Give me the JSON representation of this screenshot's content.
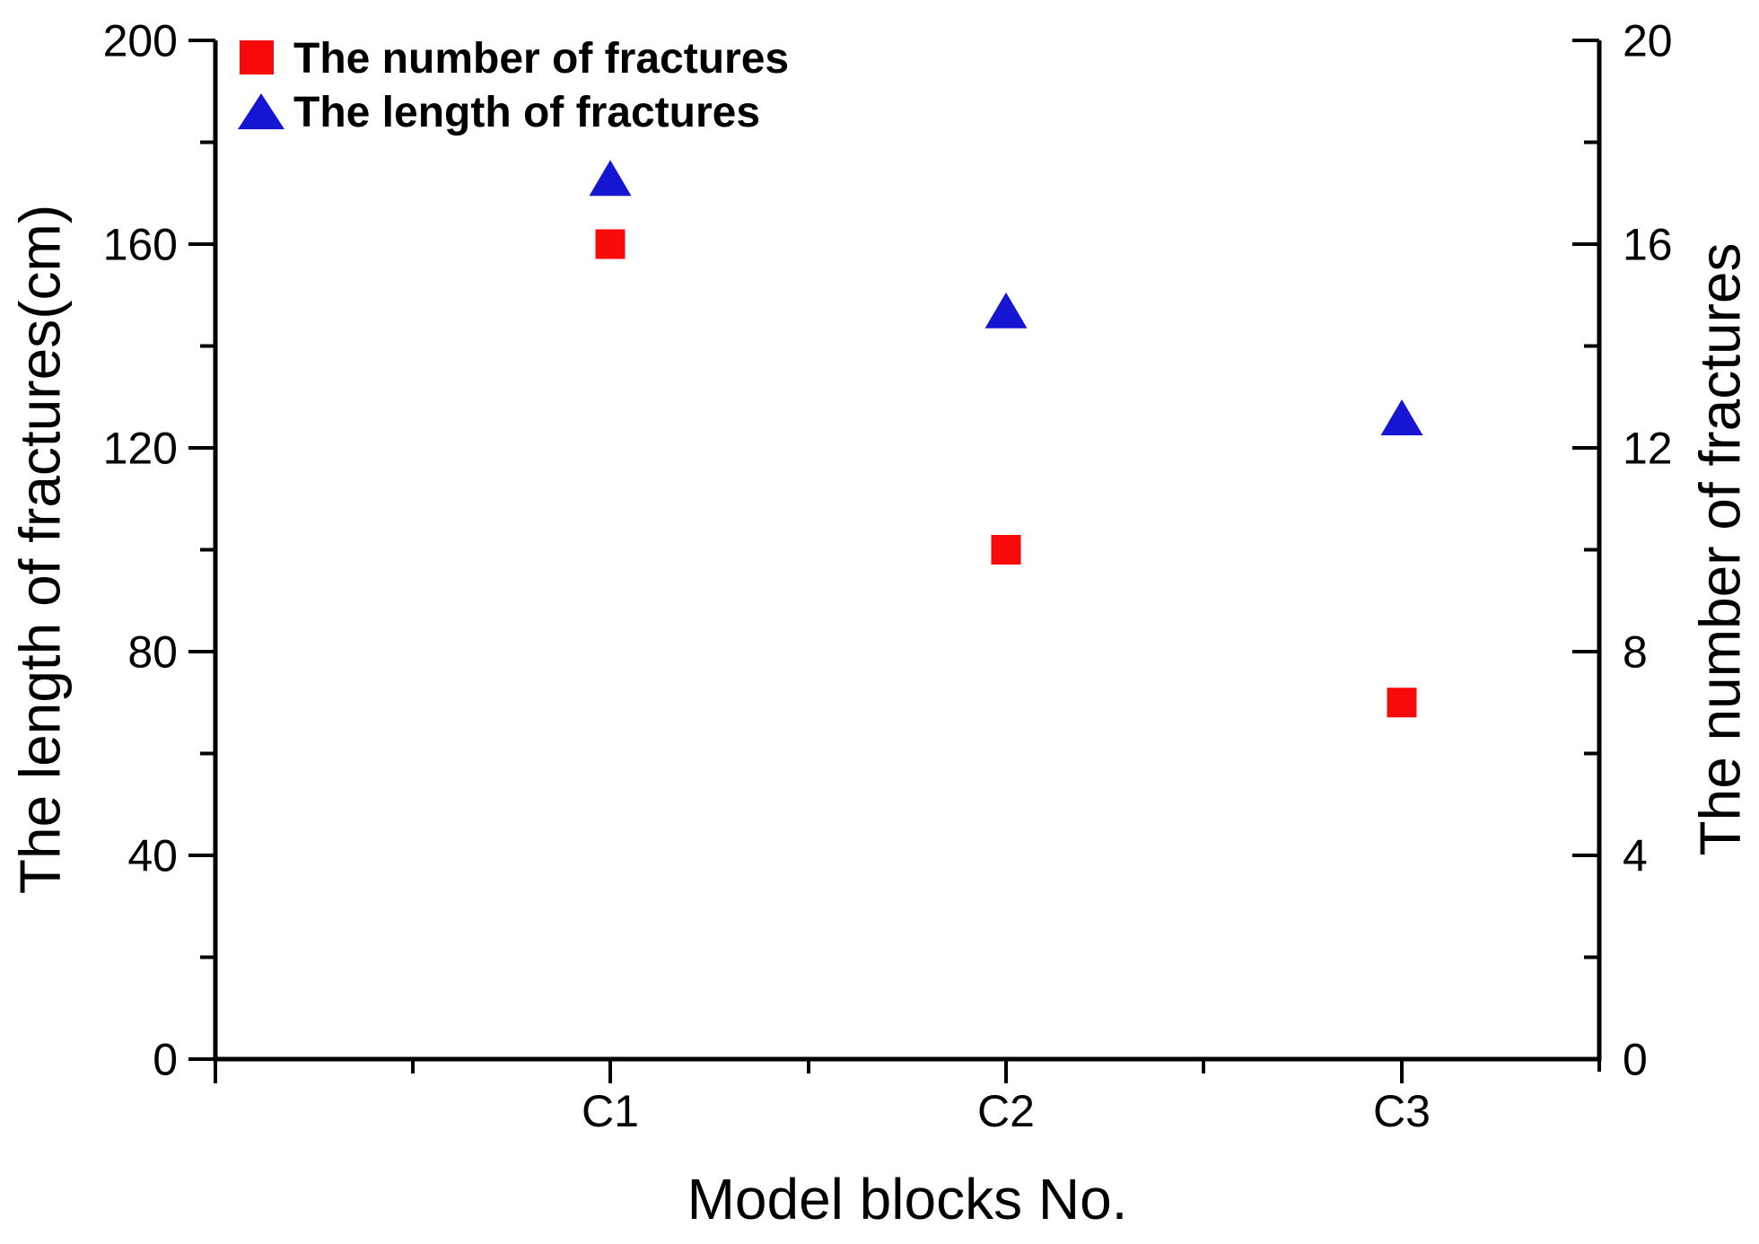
{
  "chart_data": {
    "type": "scatter",
    "title": "",
    "xlabel": "Model blocks No.",
    "ylabel_left": "The length of fractures(cm)",
    "ylabel_right": "The number of fractures",
    "categories": [
      "C1",
      "C2",
      "C3"
    ],
    "series": [
      {
        "name": "The number of fractures",
        "marker": "square",
        "color": "#f90a0a",
        "axis": "right",
        "values": [
          16,
          10,
          7
        ]
      },
      {
        "name": "The length of fractures",
        "marker": "triangle",
        "color": "#1616d2",
        "axis": "left",
        "values": [
          173,
          147,
          126
        ]
      }
    ],
    "left_axis": {
      "min": 0,
      "max": 200,
      "major_step": 40,
      "minor_step": 20,
      "tick_labels": [
        "0",
        "40",
        "80",
        "120",
        "160",
        "200"
      ]
    },
    "right_axis": {
      "min": 0,
      "max": 20,
      "major_step": 4,
      "minor_step": 2,
      "tick_labels": [
        "0",
        "4",
        "8",
        "12",
        "16",
        "20"
      ]
    },
    "legend_position": "top-left",
    "grid": false,
    "background_color": "#ffffff",
    "axis_color": "#000000"
  }
}
